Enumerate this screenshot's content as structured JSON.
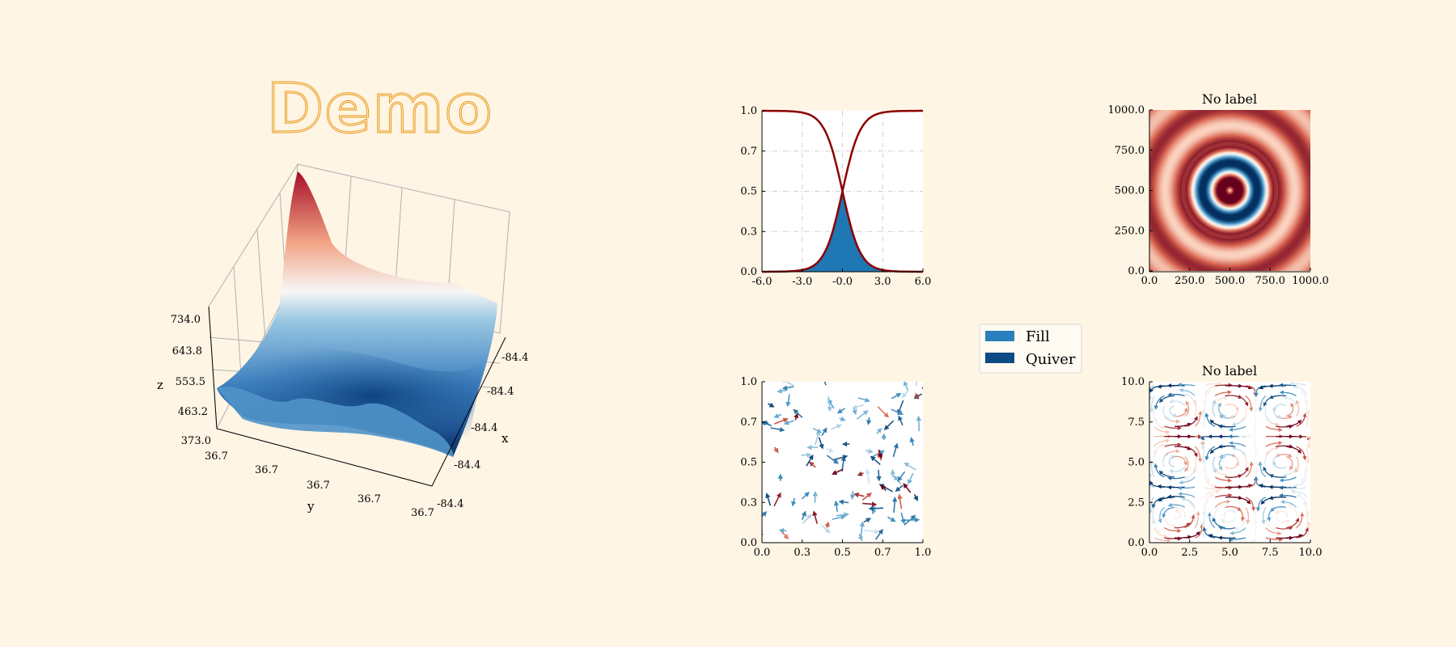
{
  "chart_data": [
    {
      "panel": "surface-3d",
      "type": "surface",
      "logo_text": "Demo",
      "xlabel": "x",
      "ylabel": "y",
      "zlabel": "z",
      "x_ticks": [
        "-84.4",
        "-84.4",
        "-84.4",
        "-84.4",
        "-84.4"
      ],
      "y_ticks": [
        "36.7",
        "36.7",
        "36.7",
        "36.7",
        "36.7"
      ],
      "z_ticks": [
        "373.0",
        "463.2",
        "553.5",
        "643.8",
        "734.0"
      ],
      "zlim": [
        373.0,
        734.0
      ],
      "colormap": "RdBu_r",
      "grid": true
    },
    {
      "panel": "fill-curves",
      "type": "line",
      "title": "",
      "x_ticks": [
        "-6.0",
        "-3.0",
        "-0.0",
        "3.0",
        "6.0"
      ],
      "y_ticks": [
        "0.0",
        "0.3",
        "0.5",
        "0.7",
        "1.0"
      ],
      "xlim": [
        -6,
        6
      ],
      "ylim": [
        0,
        1
      ],
      "series": [
        {
          "function": "sigmoid",
          "values_x": [
            -6,
            -4,
            -2,
            0,
            2,
            4,
            6
          ],
          "values_y": [
            0.0025,
            0.018,
            0.12,
            0.5,
            0.88,
            0.982,
            0.9975
          ]
        },
        {
          "function": "reverse-sigmoid",
          "values_x": [
            -6,
            -4,
            -2,
            0,
            2,
            4,
            6
          ],
          "values_y": [
            0.9975,
            0.982,
            0.88,
            0.5,
            0.12,
            0.018,
            0.0025
          ]
        }
      ],
      "fill": "area under min of both curves",
      "grid": true,
      "line_color": "#8b0000",
      "fill_color": "#1f77b4"
    },
    {
      "panel": "rings-image",
      "type": "heatmap",
      "title": "No label",
      "x_ticks": [
        "0.0",
        "250.0",
        "500.0",
        "750.0",
        "1000.0"
      ],
      "y_ticks": [
        "0.0",
        "250.0",
        "500.0",
        "750.0",
        "1000.0"
      ],
      "xlim": [
        0,
        1000
      ],
      "ylim": [
        0,
        1000
      ],
      "center": [
        500,
        500
      ],
      "colormap": "RdBu_r"
    },
    {
      "panel": "quiver",
      "type": "quiver",
      "x_ticks": [
        "0.0",
        "0.3",
        "0.5",
        "0.7",
        "1.0"
      ],
      "y_ticks": [
        "0.0",
        "0.3",
        "0.5",
        "0.7",
        "1.0"
      ],
      "xlim": [
        0,
        1
      ],
      "ylim": [
        0,
        1
      ],
      "colormap": "RdBu_r"
    },
    {
      "panel": "streamplot",
      "type": "stream",
      "title": "No label",
      "x_ticks": [
        "0.0",
        "2.5",
        "5.0",
        "7.5",
        "10.0"
      ],
      "y_ticks": [
        "0.0",
        "2.5",
        "5.0",
        "7.5",
        "10.0"
      ],
      "xlim": [
        0,
        10
      ],
      "ylim": [
        0,
        10
      ],
      "colormap": "RdBu_r"
    }
  ],
  "legend": {
    "placement": "center",
    "items": [
      {
        "label": "Fill",
        "color": "#2a7fbf"
      },
      {
        "label": "Quiver",
        "color": "#0e4a84"
      }
    ]
  },
  "colors": {
    "background": "#fff5e5",
    "logo": "#e8960e",
    "curve": "#8b0000",
    "fill": "#1f77b4"
  }
}
